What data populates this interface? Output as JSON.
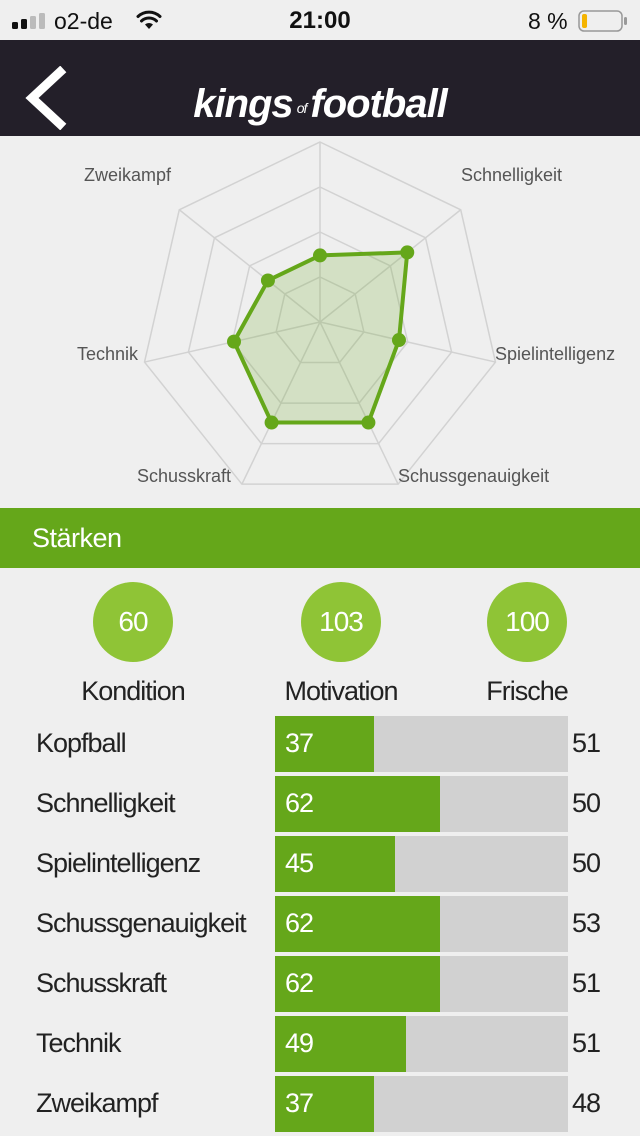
{
  "status_bar": {
    "carrier": "o2-de",
    "time": "21:00",
    "battery": "8 %",
    "battery_level": 0.08,
    "battery_color": "#f5b400"
  },
  "nav": {
    "back_icon": "chevron-left-icon",
    "logo": {
      "word1": "kings",
      "word2": "of",
      "word3": "football"
    }
  },
  "radar": {
    "axes": [
      "Schnelligkeit",
      "Spielintelligenz",
      "Schussgenauigkeit",
      "Schusskraft",
      "Technik",
      "Zweikampf"
    ],
    "values": [
      62,
      45,
      62,
      62,
      49,
      37
    ],
    "max": 100,
    "color": "#65a71a"
  },
  "section": {
    "title": "Stärken"
  },
  "summary": [
    {
      "value": "60",
      "label": "Kondition"
    },
    {
      "value": "103",
      "label": "Motivation"
    },
    {
      "value": "100",
      "label": "Frische"
    }
  ],
  "skills": [
    {
      "name": "Kopfball",
      "value": 37,
      "reference": 51
    },
    {
      "name": "Schnelligkeit",
      "value": 62,
      "reference": 50
    },
    {
      "name": "Spielintelligenz",
      "value": 45,
      "reference": 50
    },
    {
      "name": "Schussgenauigkeit",
      "value": 62,
      "reference": 53
    },
    {
      "name": "Schusskraft",
      "value": 62,
      "reference": 51
    },
    {
      "name": "Technik",
      "value": 49,
      "reference": 51
    },
    {
      "name": "Zweikampf",
      "value": 37,
      "reference": 48
    }
  ],
  "skill_max": 110,
  "colors": {
    "accent": "#65a71a",
    "circle": "#8fc436",
    "nav": "#231f29",
    "track": "#d1d1d1"
  }
}
